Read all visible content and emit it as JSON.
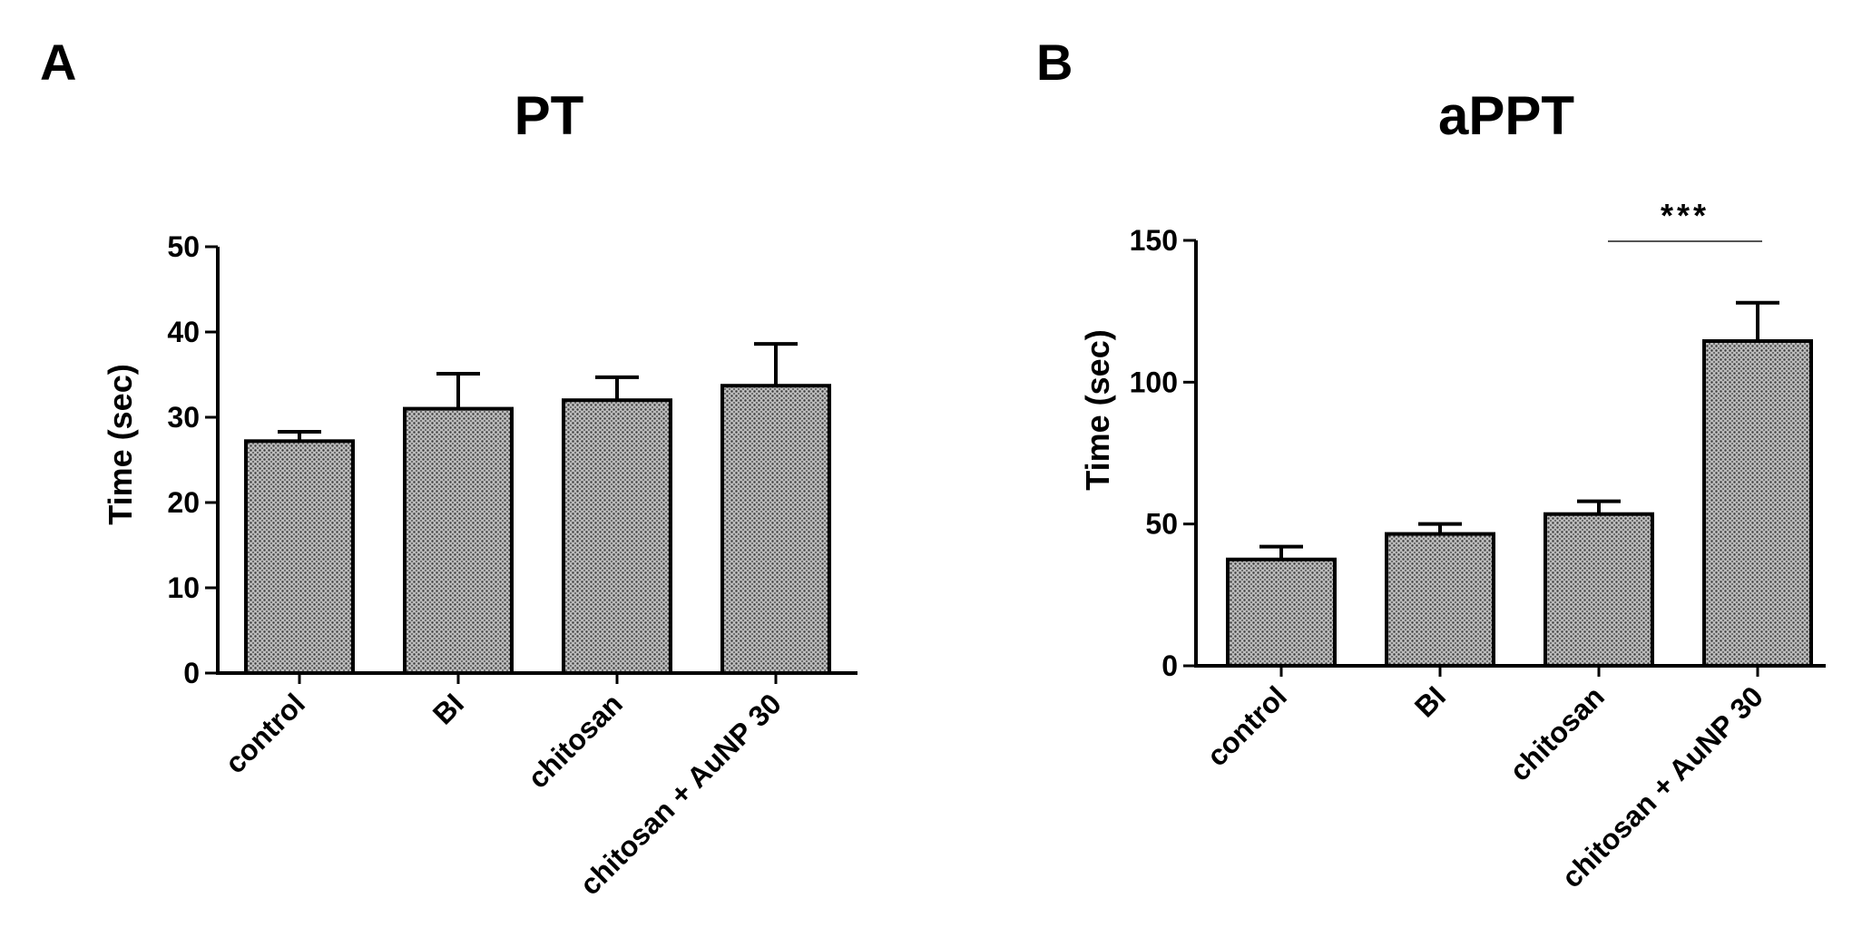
{
  "chart_data": [
    {
      "panel": "A",
      "type": "bar",
      "title": "PT",
      "ylabel": "Time (sec)",
      "xlabel": "",
      "categories": [
        "control",
        "BI",
        "chitosan",
        "chitosan + AuNP 30"
      ],
      "values": [
        27.2,
        31.0,
        32.0,
        33.7
      ],
      "errors": [
        1.1,
        4.1,
        2.7,
        4.9
      ],
      "ylim": [
        0,
        50
      ],
      "yticks": [
        0,
        10,
        20,
        30,
        40,
        50
      ],
      "grid": false,
      "legend": "none",
      "bar_fill": "dotted gray pattern",
      "significance": []
    },
    {
      "panel": "B",
      "type": "bar",
      "title": "aPPT",
      "ylabel": "Time (sec)",
      "xlabel": "",
      "categories": [
        "control",
        "BI",
        "chitosan",
        "chitosan + AuNP 30"
      ],
      "values": [
        37.5,
        46.5,
        53.5,
        114.5
      ],
      "errors": [
        4.5,
        3.5,
        4.5,
        13.5
      ],
      "ylim": [
        0,
        150
      ],
      "yticks": [
        0,
        50,
        100,
        150
      ],
      "grid": false,
      "legend": "none",
      "bar_fill": "dotted gray pattern",
      "significance": [
        {
          "label": "***",
          "over_category": "chitosan + AuNP 30"
        }
      ]
    }
  ],
  "colors": {
    "bar_fill": "#bcbcbc",
    "bar_dots": "#3a3a3a",
    "axis": "#000000",
    "sig_line": "#555555"
  }
}
